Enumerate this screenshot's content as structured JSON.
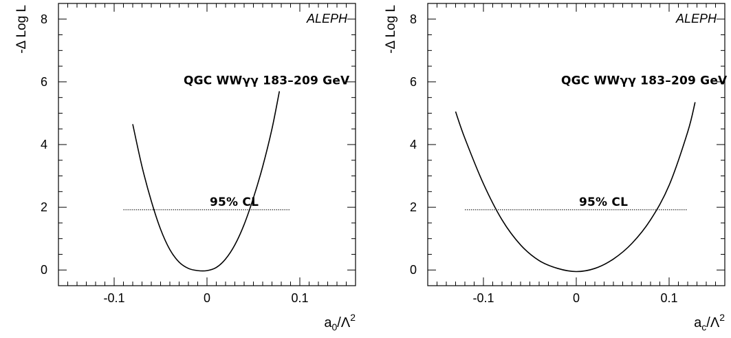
{
  "chart_data": [
    {
      "type": "line",
      "experiment_label": "ALEPH",
      "annotation": "QGC WWγγ 183–209 GeV",
      "cl_label": "95% CL",
      "ylabel": "-Δ Log L",
      "xlabel": {
        "base": "a",
        "sub": "0",
        "rest": "/Λ",
        "sup": "2"
      },
      "xlim": [
        -0.16,
        0.16
      ],
      "ylim": [
        -0.5,
        8.5
      ],
      "x_ticks": [
        -0.1,
        0,
        0.1
      ],
      "x_tick_labels": [
        "-0.1",
        "0",
        "0.1"
      ],
      "y_ticks": [
        0,
        2,
        4,
        6,
        8
      ],
      "y_tick_labels": [
        "0",
        "2",
        "4",
        "6",
        "8"
      ],
      "cl_line": {
        "y": 1.92,
        "x_range": [
          -0.09,
          0.09
        ]
      },
      "series": [
        {
          "x": [
            -0.08,
            -0.07,
            -0.06,
            -0.05,
            -0.04,
            -0.03,
            -0.02,
            -0.01,
            0.0,
            0.01,
            0.02,
            0.03,
            0.04,
            0.05,
            0.06,
            0.07,
            0.078
          ],
          "values": [
            4.65,
            3.3,
            2.2,
            1.3,
            0.65,
            0.25,
            0.05,
            -0.02,
            -0.02,
            0.08,
            0.35,
            0.8,
            1.45,
            2.3,
            3.3,
            4.5,
            5.7
          ]
        }
      ]
    },
    {
      "type": "line",
      "experiment_label": "ALEPH",
      "annotation": "QGC WWγγ 183–209 GeV",
      "cl_label": "95% CL",
      "ylabel": "-Δ Log L",
      "xlabel": {
        "base": "a",
        "sub": "c",
        "rest": "/Λ",
        "sup": "2"
      },
      "xlim": [
        -0.16,
        0.16
      ],
      "ylim": [
        -0.5,
        8.5
      ],
      "x_ticks": [
        -0.1,
        0,
        0.1
      ],
      "x_tick_labels": [
        "-0.1",
        "0",
        "0.1"
      ],
      "y_ticks": [
        0,
        2,
        4,
        6,
        8
      ],
      "y_tick_labels": [
        "0",
        "2",
        "4",
        "6",
        "8"
      ],
      "cl_line": {
        "y": 1.92,
        "x_range": [
          -0.12,
          0.12
        ]
      },
      "series": [
        {
          "x": [
            -0.13,
            -0.12,
            -0.1,
            -0.08,
            -0.06,
            -0.04,
            -0.02,
            0.0,
            0.02,
            0.04,
            0.06,
            0.08,
            0.1,
            0.12,
            0.128
          ],
          "values": [
            5.05,
            4.2,
            2.75,
            1.6,
            0.8,
            0.3,
            0.05,
            -0.05,
            0.05,
            0.35,
            0.85,
            1.6,
            2.7,
            4.4,
            5.35
          ]
        }
      ]
    }
  ]
}
